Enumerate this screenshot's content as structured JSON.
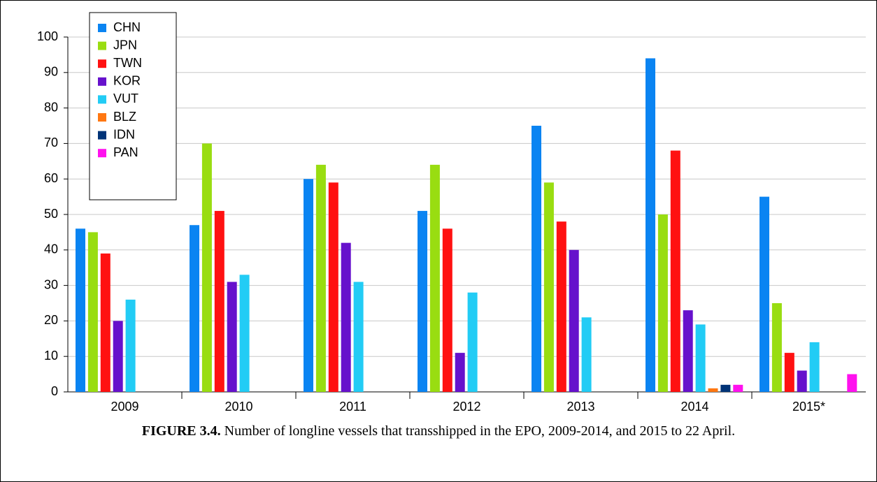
{
  "chart_data": {
    "type": "bar",
    "caption_label": "FIGURE 3.4.",
    "caption": "Number of longline vessels that transshipped in the EPO, 2009-2014, and 2015 to 22 April.",
    "categories": [
      "2009",
      "2010",
      "2011",
      "2012",
      "2013",
      "2014",
      "2015*"
    ],
    "series": [
      {
        "name": "CHN",
        "color": "#0a84f2",
        "values": [
          46,
          47,
          60,
          51,
          75,
          94,
          55
        ]
      },
      {
        "name": "JPN",
        "color": "#99dd11",
        "values": [
          45,
          70,
          64,
          64,
          59,
          50,
          25
        ]
      },
      {
        "name": "TWN",
        "color": "#ff1111",
        "values": [
          39,
          51,
          59,
          46,
          48,
          68,
          11
        ]
      },
      {
        "name": "KOR",
        "color": "#6611cc",
        "values": [
          20,
          31,
          42,
          11,
          40,
          23,
          6
        ]
      },
      {
        "name": "VUT",
        "color": "#22ccf5",
        "values": [
          26,
          33,
          31,
          28,
          21,
          19,
          14
        ]
      },
      {
        "name": "BLZ",
        "color": "#ff7711",
        "values": [
          0,
          0,
          0,
          0,
          0,
          1,
          0
        ]
      },
      {
        "name": "IDN",
        "color": "#003377",
        "values": [
          0,
          0,
          0,
          0,
          0,
          2,
          0
        ]
      },
      {
        "name": "PAN",
        "color": "#ff11ee",
        "values": [
          0,
          0,
          0,
          0,
          0,
          2,
          5
        ]
      }
    ],
    "ylim": [
      0,
      100
    ],
    "yticks": [
      0,
      10,
      20,
      30,
      40,
      50,
      60,
      70,
      80,
      90,
      100
    ],
    "grid": true,
    "legend": "top-left"
  }
}
